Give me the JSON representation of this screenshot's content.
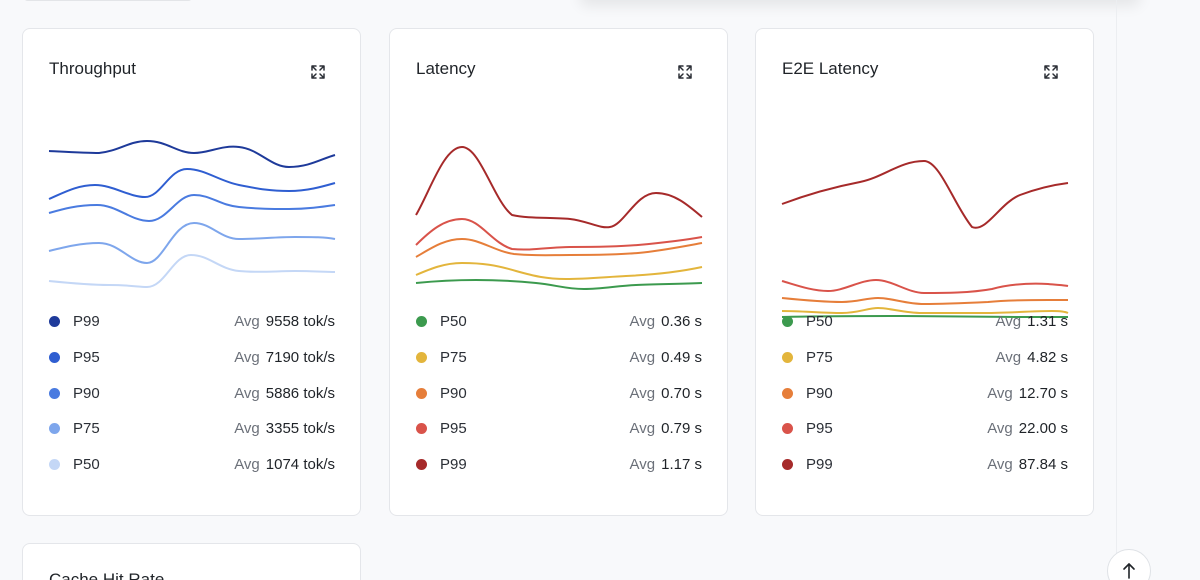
{
  "cards": [
    {
      "title": "Throughput",
      "legend": [
        {
          "label": "P99",
          "avg_label": "Avg",
          "value": "9558 tok/s",
          "color": "#1e3a9a"
        },
        {
          "label": "P95",
          "avg_label": "Avg",
          "value": "7190 tok/s",
          "color": "#2f5ed1"
        },
        {
          "label": "P90",
          "avg_label": "Avg",
          "value": "5886 tok/s",
          "color": "#4a7be0"
        },
        {
          "label": "P75",
          "avg_label": "Avg",
          "value": "3355 tok/s",
          "color": "#7ea6ec"
        },
        {
          "label": "P50",
          "avg_label": "Avg",
          "value": "1074 tok/s",
          "color": "#c4d7f6"
        }
      ]
    },
    {
      "title": "Latency",
      "legend": [
        {
          "label": "P50",
          "avg_label": "Avg",
          "value": "0.36 s",
          "color": "#3c9a4e"
        },
        {
          "label": "P75",
          "avg_label": "Avg",
          "value": "0.49 s",
          "color": "#e3b53c"
        },
        {
          "label": "P90",
          "avg_label": "Avg",
          "value": "0.70 s",
          "color": "#e67e3a"
        },
        {
          "label": "P95",
          "avg_label": "Avg",
          "value": "0.79 s",
          "color": "#d9534a"
        },
        {
          "label": "P99",
          "avg_label": "Avg",
          "value": "1.17 s",
          "color": "#a62a2a"
        }
      ]
    },
    {
      "title": "E2E Latency",
      "legend": [
        {
          "label": "P50",
          "avg_label": "Avg",
          "value": "1.31 s",
          "color": "#3c9a4e"
        },
        {
          "label": "P75",
          "avg_label": "Avg",
          "value": "4.82 s",
          "color": "#e3b53c"
        },
        {
          "label": "P90",
          "avg_label": "Avg",
          "value": "12.70 s",
          "color": "#e67e3a"
        },
        {
          "label": "P95",
          "avg_label": "Avg",
          "value": "22.00 s",
          "color": "#d9534a"
        },
        {
          "label": "P99",
          "avg_label": "Avg",
          "value": "87.84 s",
          "color": "#a62a2a"
        }
      ]
    }
  ],
  "bottom_card": {
    "title": "Cache Hit Rate"
  },
  "icons": {
    "expand": "expand-icon",
    "scroll_top": "arrow-up-icon"
  }
}
